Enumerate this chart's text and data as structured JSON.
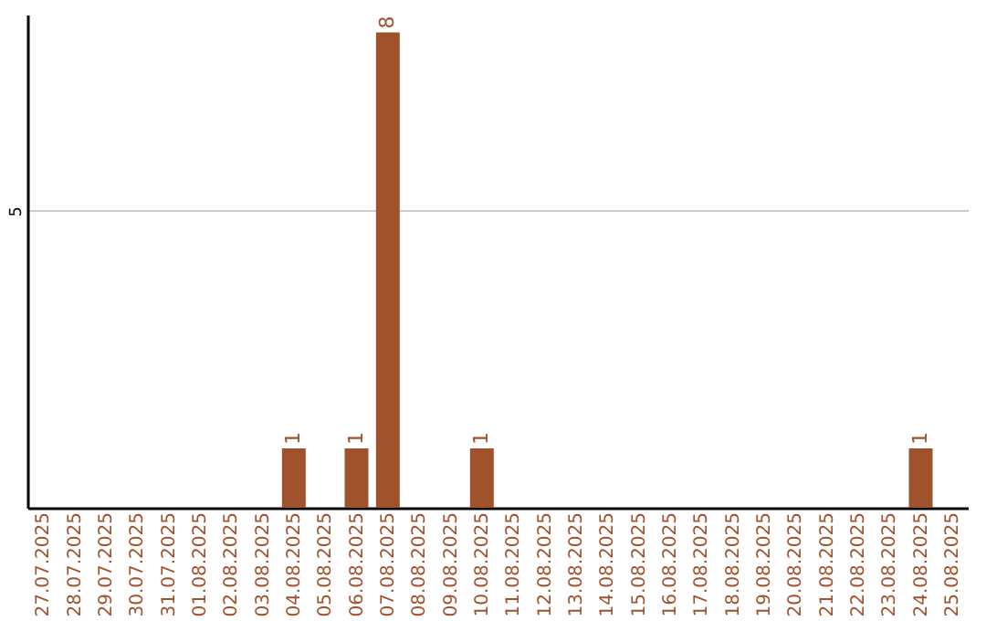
{
  "chart_data": {
    "type": "bar",
    "categories": [
      "27.07.2025",
      "28.07.2025",
      "29.07.2025",
      "30.07.2025",
      "31.07.2025",
      "01.08.2025",
      "02.08.2025",
      "03.08.2025",
      "04.08.2025",
      "05.08.2025",
      "06.08.2025",
      "07.08.2025",
      "08.08.2025",
      "09.08.2025",
      "10.08.2025",
      "11.08.2025",
      "12.08.2025",
      "13.08.2025",
      "14.08.2025",
      "15.08.2025",
      "16.08.2025",
      "17.08.2025",
      "18.08.2025",
      "19.08.2025",
      "20.08.2025",
      "21.08.2025",
      "22.08.2025",
      "23.08.2025",
      "24.08.2025",
      "25.08.2025"
    ],
    "values": [
      0,
      0,
      0,
      0,
      0,
      0,
      0,
      0,
      1,
      0,
      1,
      8,
      0,
      0,
      1,
      0,
      0,
      0,
      0,
      0,
      0,
      0,
      0,
      0,
      0,
      0,
      0,
      0,
      1,
      0
    ],
    "value_labels": [
      null,
      null,
      null,
      null,
      null,
      null,
      null,
      null,
      "1",
      null,
      "1",
      "8",
      null,
      null,
      "1",
      null,
      null,
      null,
      null,
      null,
      null,
      null,
      null,
      null,
      null,
      null,
      null,
      null,
      "1",
      null
    ],
    "color": "#a0522d",
    "ylim": [
      0,
      8.3
    ],
    "yticks": [
      5
    ],
    "grid": "y"
  }
}
